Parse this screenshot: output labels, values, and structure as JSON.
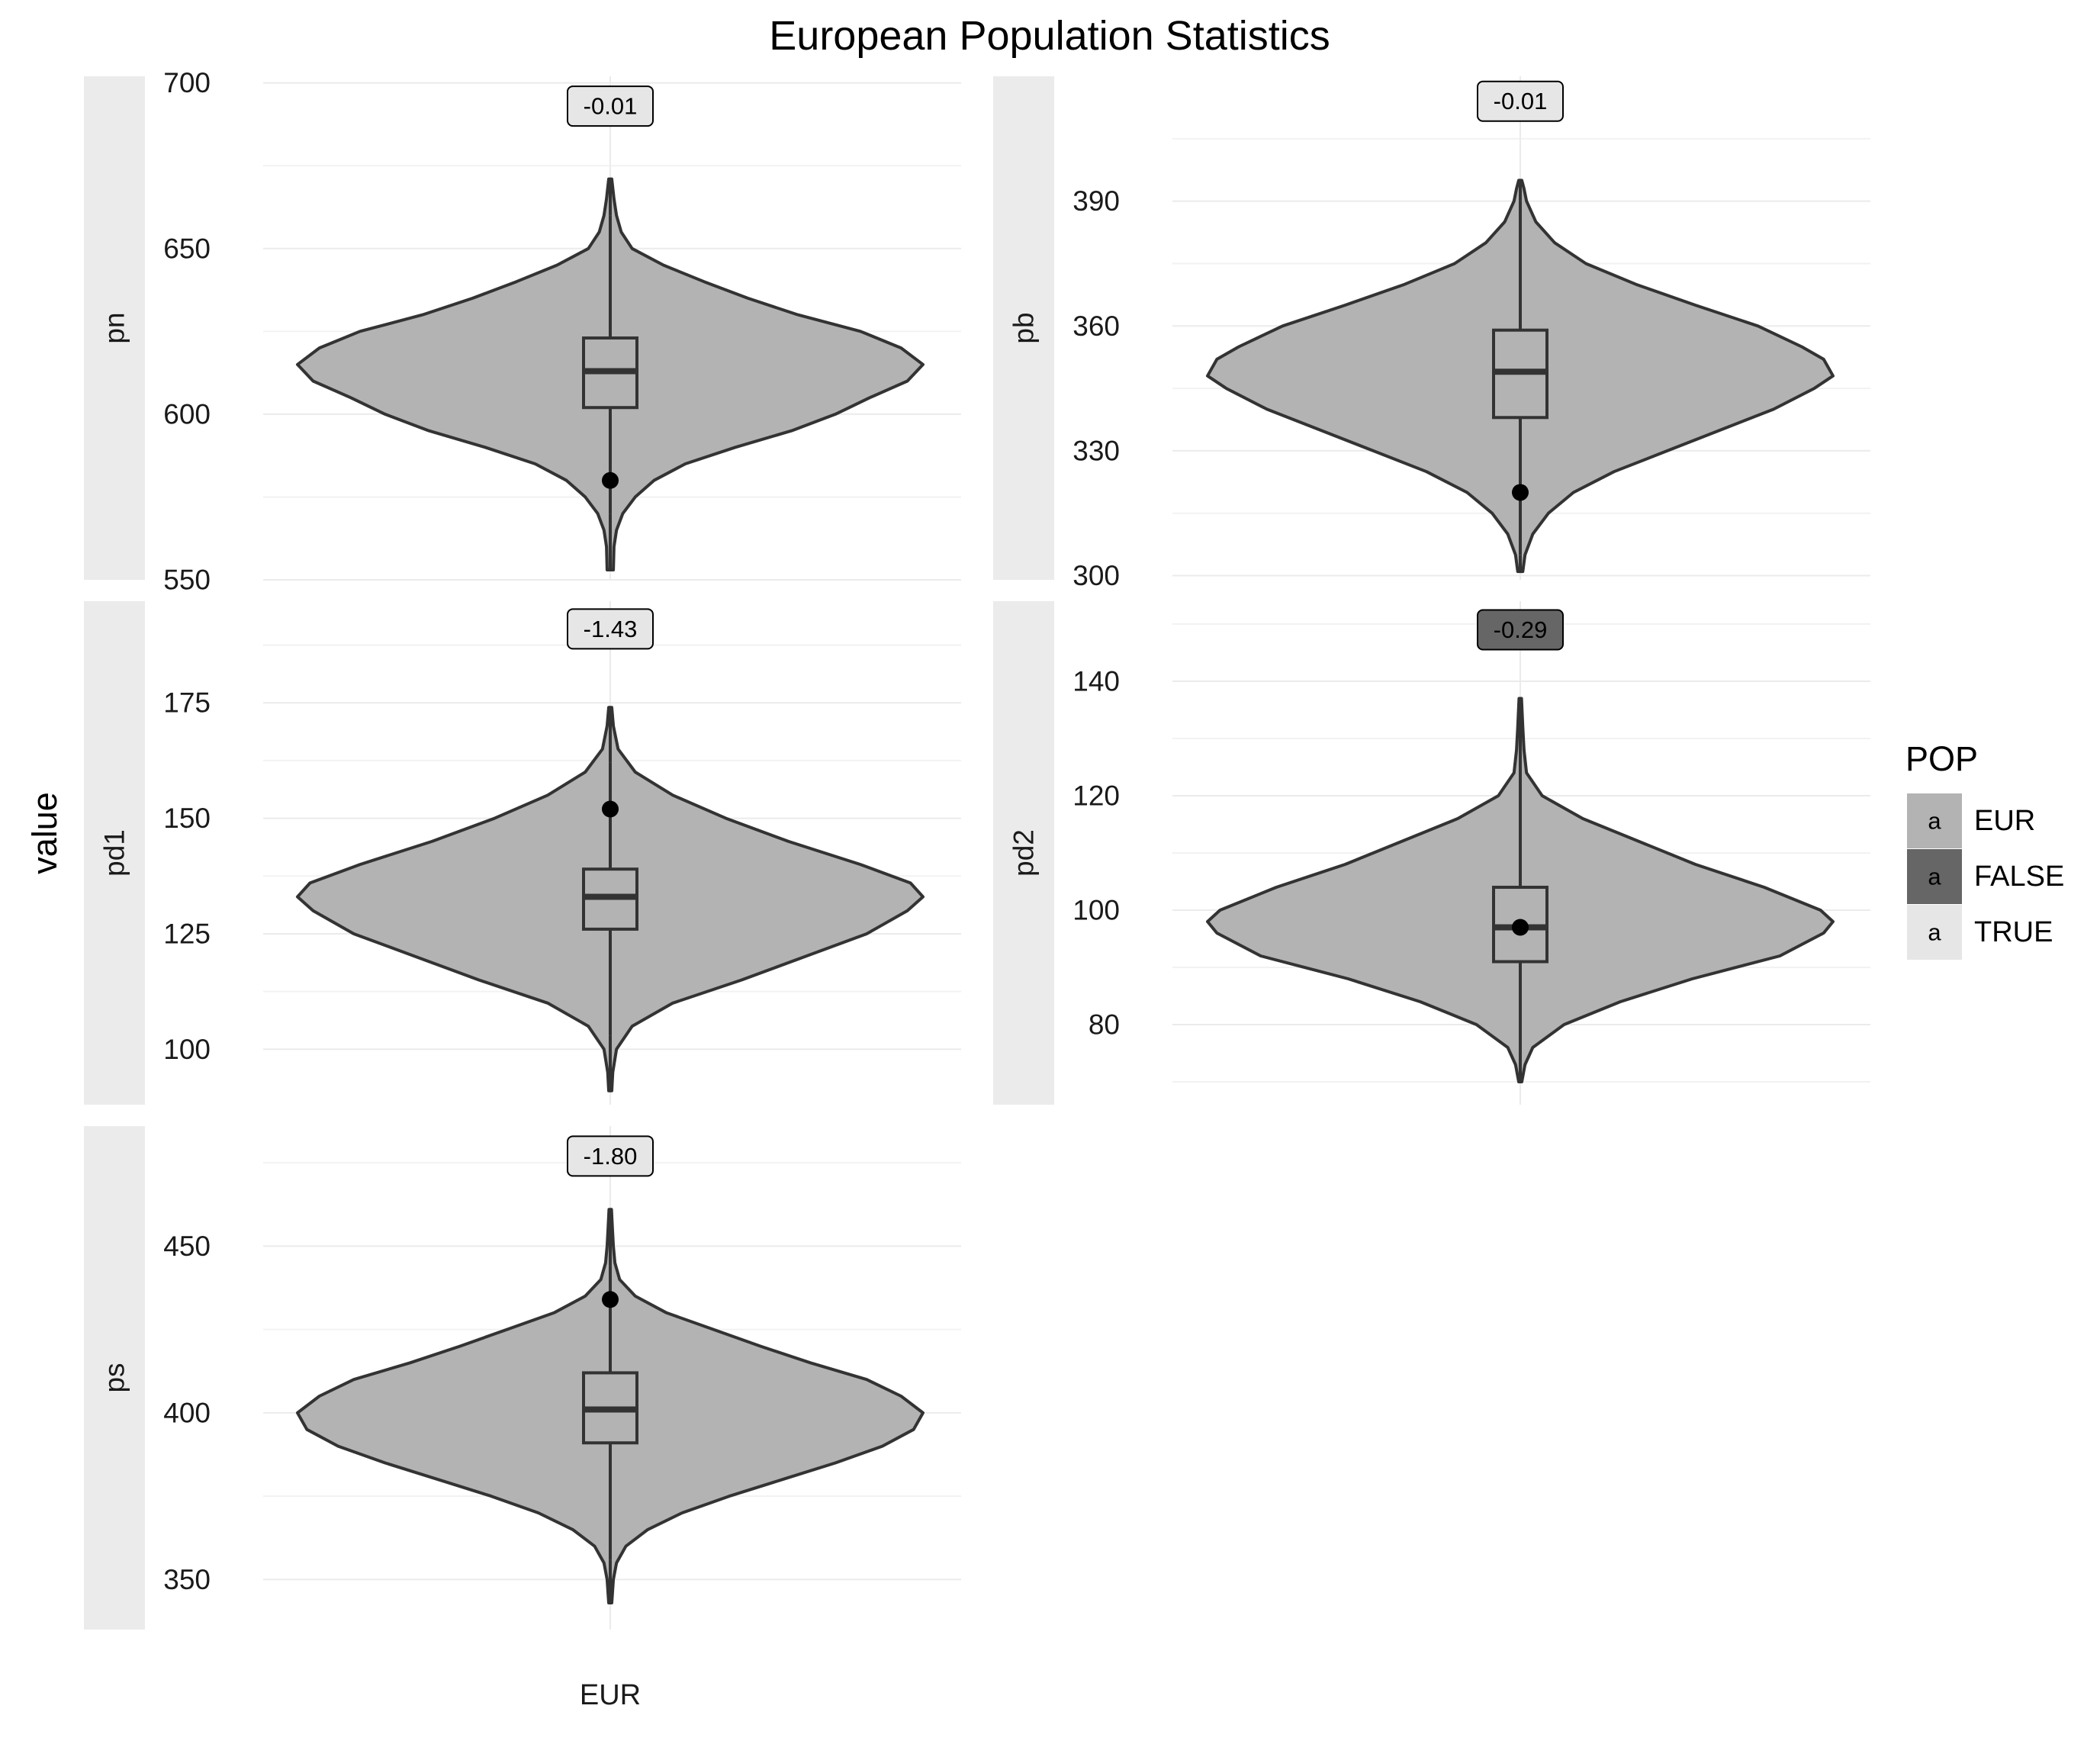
{
  "chart_data": {
    "type": "violin",
    "title": "European Population Statistics",
    "ylabel": "value",
    "x_category": "EUR",
    "legend": {
      "title": "POP",
      "placement": "right",
      "key_glyph": "a",
      "entries": [
        {
          "label": "EUR",
          "color": "#b3b3b3"
        },
        {
          "label": "FALSE",
          "color": "#666666"
        },
        {
          "label": "TRUE",
          "color": "#e6e6e6"
        }
      ]
    },
    "panels": [
      {
        "name": "pn",
        "ylim": [
          550,
          702
        ],
        "ticks": [
          550,
          600,
          650,
          700
        ],
        "label": {
          "text": "-0.01",
          "fill": "TRUE",
          "y": 693
        },
        "box": {
          "lower_whisker": 570,
          "q1": 602,
          "median": 613,
          "q3": 623,
          "upper_whisker": 660
        },
        "point": 580,
        "range": [
          553,
          671
        ],
        "density": [
          [
            553,
            0.01
          ],
          [
            560,
            0.012
          ],
          [
            565,
            0.02
          ],
          [
            570,
            0.04
          ],
          [
            575,
            0.08
          ],
          [
            580,
            0.14
          ],
          [
            585,
            0.24
          ],
          [
            590,
            0.4
          ],
          [
            595,
            0.58
          ],
          [
            600,
            0.72
          ],
          [
            605,
            0.83
          ],
          [
            610,
            0.95
          ],
          [
            615,
            1.0
          ],
          [
            620,
            0.93
          ],
          [
            625,
            0.8
          ],
          [
            630,
            0.6
          ],
          [
            635,
            0.44
          ],
          [
            640,
            0.3
          ],
          [
            645,
            0.17
          ],
          [
            650,
            0.07
          ],
          [
            655,
            0.035
          ],
          [
            660,
            0.02
          ],
          [
            665,
            0.012
          ],
          [
            671,
            0.005
          ]
        ]
      },
      {
        "name": "pb",
        "ylim": [
          299,
          420
        ],
        "ticks": [
          300,
          330,
          360,
          390
        ],
        "label": {
          "text": "-0.01",
          "fill": "TRUE",
          "y": 414
        },
        "box": {
          "lower_whisker": 305,
          "q1": 338,
          "median": 349,
          "q3": 359,
          "upper_whisker": 390
        },
        "point": 320,
        "range": [
          301,
          395
        ],
        "density": [
          [
            301,
            0.008
          ],
          [
            305,
            0.015
          ],
          [
            310,
            0.04
          ],
          [
            315,
            0.09
          ],
          [
            320,
            0.17
          ],
          [
            325,
            0.3
          ],
          [
            330,
            0.47
          ],
          [
            335,
            0.64
          ],
          [
            340,
            0.81
          ],
          [
            345,
            0.94
          ],
          [
            348,
            1.0
          ],
          [
            352,
            0.97
          ],
          [
            355,
            0.9
          ],
          [
            360,
            0.76
          ],
          [
            365,
            0.56
          ],
          [
            370,
            0.37
          ],
          [
            375,
            0.21
          ],
          [
            380,
            0.11
          ],
          [
            385,
            0.05
          ],
          [
            390,
            0.02
          ],
          [
            393,
            0.012
          ],
          [
            395,
            0.005
          ]
        ]
      },
      {
        "name": "pd1",
        "ylim": [
          88,
          197
        ],
        "ticks": [
          100,
          125,
          150,
          175
        ],
        "label": {
          "text": "-1.43",
          "fill": "TRUE",
          "y": 191
        },
        "box": {
          "lower_whisker": 103,
          "q1": 126,
          "median": 133,
          "q3": 139,
          "upper_whisker": 162
        },
        "point": 152,
        "range": [
          91,
          174
        ],
        "density": [
          [
            91,
            0.005
          ],
          [
            95,
            0.008
          ],
          [
            100,
            0.02
          ],
          [
            105,
            0.07
          ],
          [
            110,
            0.2
          ],
          [
            115,
            0.42
          ],
          [
            120,
            0.62
          ],
          [
            125,
            0.82
          ],
          [
            130,
            0.95
          ],
          [
            133,
            1.0
          ],
          [
            136,
            0.96
          ],
          [
            140,
            0.8
          ],
          [
            145,
            0.57
          ],
          [
            150,
            0.37
          ],
          [
            155,
            0.2
          ],
          [
            160,
            0.08
          ],
          [
            165,
            0.025
          ],
          [
            170,
            0.01
          ],
          [
            174,
            0.005
          ]
        ]
      },
      {
        "name": "pd2",
        "ylim": [
          66,
          154
        ],
        "ticks": [
          80,
          100,
          120,
          140
        ],
        "label": {
          "text": "-0.29",
          "fill": "FALSE",
          "y": 149
        },
        "box": {
          "lower_whisker": 75,
          "q1": 91,
          "median": 97,
          "q3": 104,
          "upper_whisker": 124
        },
        "point": 97,
        "range": [
          70,
          137
        ],
        "density": [
          [
            70,
            0.005
          ],
          [
            73,
            0.015
          ],
          [
            76,
            0.04
          ],
          [
            80,
            0.14
          ],
          [
            84,
            0.32
          ],
          [
            88,
            0.55
          ],
          [
            92,
            0.83
          ],
          [
            96,
            0.97
          ],
          [
            98,
            1.0
          ],
          [
            100,
            0.96
          ],
          [
            104,
            0.78
          ],
          [
            108,
            0.56
          ],
          [
            112,
            0.38
          ],
          [
            116,
            0.2
          ],
          [
            120,
            0.07
          ],
          [
            124,
            0.02
          ],
          [
            128,
            0.012
          ],
          [
            132,
            0.008
          ],
          [
            137,
            0.004
          ]
        ]
      },
      {
        "name": "ps",
        "ylim": [
          335,
          486
        ],
        "ticks": [
          350,
          400,
          450
        ],
        "label": {
          "text": "-1.80",
          "fill": "TRUE",
          "y": 477
        },
        "box": {
          "lower_whisker": 356,
          "q1": 391,
          "median": 401,
          "q3": 412,
          "upper_whisker": 444
        },
        "point": 434,
        "range": [
          343,
          461
        ],
        "density": [
          [
            343,
            0.005
          ],
          [
            350,
            0.01
          ],
          [
            355,
            0.02
          ],
          [
            360,
            0.05
          ],
          [
            365,
            0.12
          ],
          [
            370,
            0.23
          ],
          [
            375,
            0.38
          ],
          [
            380,
            0.55
          ],
          [
            385,
            0.72
          ],
          [
            390,
            0.87
          ],
          [
            395,
            0.97
          ],
          [
            400,
            1.0
          ],
          [
            405,
            0.93
          ],
          [
            410,
            0.82
          ],
          [
            415,
            0.64
          ],
          [
            420,
            0.48
          ],
          [
            425,
            0.33
          ],
          [
            430,
            0.18
          ],
          [
            435,
            0.08
          ],
          [
            440,
            0.03
          ],
          [
            445,
            0.015
          ],
          [
            450,
            0.01
          ],
          [
            455,
            0.007
          ],
          [
            461,
            0.004
          ]
        ]
      }
    ]
  }
}
